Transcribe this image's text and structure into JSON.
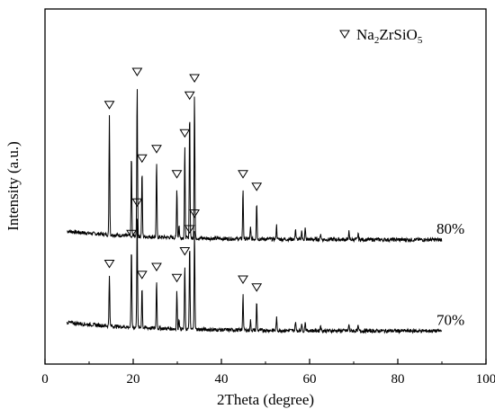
{
  "chart_data": {
    "type": "line",
    "xlabel": "2Theta (degree)",
    "ylabel": "Intensity (a.u.)",
    "xlim": [
      0,
      100
    ],
    "xticks": [
      0,
      20,
      40,
      60,
      80,
      100
    ],
    "yticks_shown": false,
    "legend": {
      "marker": "open-down-triangle",
      "formula": {
        "el1": "Na",
        "sub1": "2",
        "el2": "ZrSiO",
        "sub2": "5"
      },
      "placement": "top-right"
    },
    "series": [
      {
        "name": "80%",
        "baseline": 0.58,
        "noise": 0.012,
        "peaks": [
          {
            "x": 14.6,
            "h": 0.76,
            "marked": true
          },
          {
            "x": 19.6,
            "h": 0.52,
            "marked": false
          },
          {
            "x": 20.9,
            "h": 0.97,
            "marked": true
          },
          {
            "x": 22.0,
            "h": 0.42,
            "marked": true
          },
          {
            "x": 25.3,
            "h": 0.48,
            "marked": true
          },
          {
            "x": 29.9,
            "h": 0.32,
            "marked": true
          },
          {
            "x": 30.4,
            "h": 0.08,
            "marked": false
          },
          {
            "x": 31.7,
            "h": 0.58,
            "marked": true
          },
          {
            "x": 32.8,
            "h": 0.82,
            "marked": true
          },
          {
            "x": 33.9,
            "h": 0.93,
            "marked": true
          },
          {
            "x": 44.9,
            "h": 0.32,
            "marked": true
          },
          {
            "x": 48.0,
            "h": 0.24,
            "marked": true
          },
          {
            "x": 46.6,
            "h": 0.07,
            "marked": false
          },
          {
            "x": 52.5,
            "h": 0.09,
            "marked": false
          },
          {
            "x": 56.8,
            "h": 0.07,
            "marked": false
          },
          {
            "x": 58.2,
            "h": 0.06,
            "marked": false
          },
          {
            "x": 59.0,
            "h": 0.07,
            "marked": false
          },
          {
            "x": 62.5,
            "h": 0.04,
            "marked": false
          },
          {
            "x": 68.9,
            "h": 0.05,
            "marked": false
          },
          {
            "x": 71.0,
            "h": 0.04,
            "marked": false
          }
        ],
        "label": "80%"
      },
      {
        "name": "70%",
        "baseline": 0.0,
        "noise": 0.012,
        "peaks": [
          {
            "x": 14.6,
            "h": 0.33,
            "marked": true
          },
          {
            "x": 19.6,
            "h": 0.52,
            "marked": true
          },
          {
            "x": 20.9,
            "h": 0.72,
            "marked": true
          },
          {
            "x": 22.0,
            "h": 0.26,
            "marked": true
          },
          {
            "x": 25.3,
            "h": 0.31,
            "marked": true
          },
          {
            "x": 29.9,
            "h": 0.24,
            "marked": true
          },
          {
            "x": 30.4,
            "h": 0.07,
            "marked": false
          },
          {
            "x": 31.7,
            "h": 0.41,
            "marked": true
          },
          {
            "x": 32.8,
            "h": 0.55,
            "marked": true
          },
          {
            "x": 33.9,
            "h": 0.65,
            "marked": true
          },
          {
            "x": 44.9,
            "h": 0.23,
            "marked": true
          },
          {
            "x": 48.0,
            "h": 0.18,
            "marked": true
          },
          {
            "x": 46.6,
            "h": 0.06,
            "marked": false
          },
          {
            "x": 52.5,
            "h": 0.08,
            "marked": false
          },
          {
            "x": 56.8,
            "h": 0.06,
            "marked": false
          },
          {
            "x": 58.2,
            "h": 0.05,
            "marked": false
          },
          {
            "x": 59.0,
            "h": 0.06,
            "marked": false
          },
          {
            "x": 62.5,
            "h": 0.04,
            "marked": false
          },
          {
            "x": 68.9,
            "h": 0.04,
            "marked": false
          },
          {
            "x": 71.0,
            "h": 0.03,
            "marked": false
          }
        ],
        "label": "70%"
      }
    ]
  }
}
